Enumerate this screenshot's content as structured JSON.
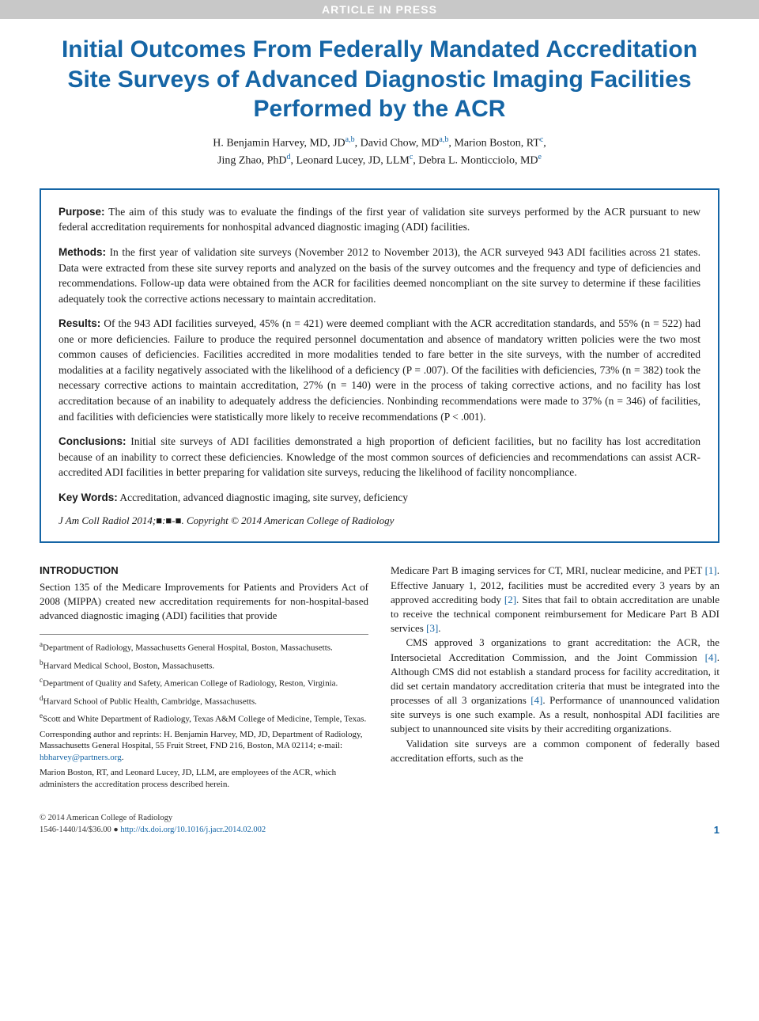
{
  "banner": "ARTICLE IN PRESS",
  "title": "Initial Outcomes From Federally Mandated Accreditation Site Surveys of Advanced Diagnostic Imaging Facilities Performed by the ACR",
  "authors_line1": "H. Benjamin Harvey, MD, JD",
  "authors_sup1": "a,b",
  "authors_sep1": ", David Chow, MD",
  "authors_sup2": "a,b",
  "authors_sep2": ", Marion Boston, RT",
  "authors_sup3": "c",
  "authors_sep3": ",",
  "authors_line2a": "Jing Zhao, PhD",
  "authors_sup4": "d",
  "authors_sep4": ", Leonard Lucey, JD, LLM",
  "authors_sup5": "c",
  "authors_sep5": ", Debra L. Monticciolo, MD",
  "authors_sup6": "e",
  "abstract": {
    "purpose_label": "Purpose:",
    "purpose_text": " The aim of this study was to evaluate the findings of the first year of validation site surveys performed by the ACR pursuant to new federal accreditation requirements for nonhospital advanced diagnostic imaging (ADI) facilities.",
    "methods_label": "Methods:",
    "methods_text": " In the first year of validation site surveys (November 2012 to November 2013), the ACR surveyed 943 ADI facilities across 21 states. Data were extracted from these site survey reports and analyzed on the basis of the survey outcomes and the frequency and type of deficiencies and recommendations. Follow-up data were obtained from the ACR for facilities deemed noncompliant on the site survey to determine if these facilities adequately took the corrective actions necessary to maintain accreditation.",
    "results_label": "Results:",
    "results_text": " Of the 943 ADI facilities surveyed, 45% (n = 421) were deemed compliant with the ACR accreditation standards, and 55% (n = 522) had one or more deficiencies. Failure to produce the required personnel documentation and absence of mandatory written policies were the two most common causes of deficiencies. Facilities accredited in more modalities tended to fare better in the site surveys, with the number of accredited modalities at a facility negatively associated with the likelihood of a deficiency (P = .007). Of the facilities with deficiencies, 73% (n = 382) took the necessary corrective actions to maintain accreditation, 27% (n = 140) were in the process of taking corrective actions, and no facility has lost accreditation because of an inability to adequately address the deficiencies. Nonbinding recommendations were made to 37% (n = 346) of facilities, and facilities with deficiencies were statistically more likely to receive recommendations (P < .001).",
    "conclusions_label": "Conclusions:",
    "conclusions_text": " Initial site surveys of ADI facilities demonstrated a high proportion of deficient facilities, but no facility has lost accreditation because of an inability to correct these deficiencies. Knowledge of the most common sources of deficiencies and recommendations can assist ACR-accredited ADI facilities in better preparing for validation site surveys, reducing the likelihood of facility noncompliance.",
    "keywords_label": "Key Words:",
    "keywords_text": " Accreditation, advanced diagnostic imaging, site survey, deficiency",
    "citation": "J Am Coll Radiol 2014;■:■-■. Copyright © 2014 American College of Radiology"
  },
  "intro_heading": "INTRODUCTION",
  "intro_col1": "Section 135 of the Medicare Improvements for Patients and Providers Act of 2008 (MIPPA) created new accreditation requirements for non-hospital-based advanced diagnostic imaging (ADI) facilities that provide",
  "intro_col2_p1a": "Medicare Part B imaging services for CT, MRI, nuclear medicine, and PET ",
  "intro_col2_p1_cite1": "[1]",
  "intro_col2_p1b": ". Effective January 1, 2012, facilities must be accredited every 3 years by an approved accrediting body ",
  "intro_col2_p1_cite2": "[2]",
  "intro_col2_p1c": ". Sites that fail to obtain accreditation are unable to receive the technical component reimbursement for Medicare Part B ADI services ",
  "intro_col2_p1_cite3": "[3]",
  "intro_col2_p1d": ".",
  "intro_col2_p2a": "CMS approved 3 organizations to grant accreditation: the ACR, the Intersocietal Accreditation Commission, and the Joint Commission ",
  "intro_col2_p2_cite1": "[4]",
  "intro_col2_p2b": ". Although CMS did not establish a standard process for facility accreditation, it did set certain mandatory accreditation criteria that must be integrated into the processes of all 3 organizations ",
  "intro_col2_p2_cite2": "[4]",
  "intro_col2_p2c": ". Performance of unannounced validation site surveys is one such example. As a result, nonhospital ADI facilities are subject to unannounced site visits by their accrediting organizations.",
  "intro_col2_p3": "Validation site surveys are a common component of federally based accreditation efforts, such as the",
  "affiliations": {
    "a": "Department of Radiology, Massachusetts General Hospital, Boston, Massachusetts.",
    "b": "Harvard Medical School, Boston, Massachusetts.",
    "c": "Department of Quality and Safety, American College of Radiology, Reston, Virginia.",
    "d": "Harvard School of Public Health, Cambridge, Massachusetts.",
    "e": "Scott and White Department of Radiology, Texas A&M College of Medicine, Temple, Texas.",
    "corresponding_a": "Corresponding author and reprints: H. Benjamin Harvey, MD, JD, Department of Radiology, Massachusetts General Hospital, 55 Fruit Street, FND 216, Boston, MA 02114; e-mail: ",
    "corresponding_email": "hbharvey@partners.org",
    "corresponding_b": ".",
    "disclosure": "Marion Boston, RT, and Leonard Lucey, JD, LLM, are employees of the ACR, which administers the accreditation process described herein."
  },
  "footer": {
    "copyright": "© 2014 American College of Radiology",
    "issn_line": "1546-1440/14/$36.00 ● ",
    "doi": "http://dx.doi.org/10.1016/j.jacr.2014.02.002",
    "page": "1"
  },
  "colors": {
    "accent_blue": "#1565a5",
    "banner_bg": "#c8c8c8",
    "banner_text": "#ffffff"
  }
}
